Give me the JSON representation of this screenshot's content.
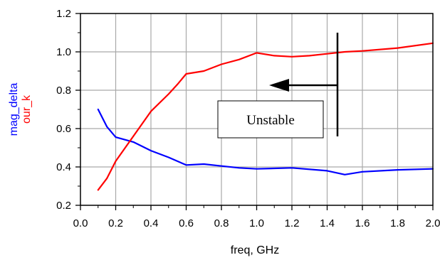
{
  "chart_data": {
    "type": "line",
    "xlabel": "freq, GHz",
    "ylabel_series": [
      "mag_delta",
      "our_k"
    ],
    "xlim": [
      0.0,
      2.0
    ],
    "ylim": [
      0.2,
      1.2
    ],
    "x_ticks": [
      "0.0",
      "0.2",
      "0.4",
      "0.6",
      "0.8",
      "1.0",
      "1.2",
      "1.4",
      "1.6",
      "1.8",
      "2.0"
    ],
    "y_ticks": [
      "0.2",
      "0.4",
      "0.6",
      "0.8",
      "1.0",
      "1.2"
    ],
    "grid": true,
    "series": [
      {
        "name": "mag_delta",
        "color": "#0000ff",
        "x": [
          0.1,
          0.15,
          0.2,
          0.3,
          0.4,
          0.5,
          0.6,
          0.7,
          0.8,
          0.9,
          1.0,
          1.2,
          1.4,
          1.5,
          1.6,
          1.8,
          2.0
        ],
        "y": [
          0.7,
          0.61,
          0.555,
          0.53,
          0.485,
          0.45,
          0.41,
          0.415,
          0.405,
          0.395,
          0.39,
          0.395,
          0.38,
          0.36,
          0.375,
          0.385,
          0.39
        ]
      },
      {
        "name": "our_k",
        "color": "#ff0000",
        "x": [
          0.1,
          0.15,
          0.2,
          0.3,
          0.4,
          0.5,
          0.55,
          0.6,
          0.7,
          0.8,
          0.9,
          1.0,
          1.1,
          1.2,
          1.3,
          1.4,
          1.5,
          1.6,
          1.8,
          2.0
        ],
        "y": [
          0.28,
          0.34,
          0.43,
          0.56,
          0.69,
          0.78,
          0.83,
          0.885,
          0.9,
          0.935,
          0.96,
          0.995,
          0.98,
          0.975,
          0.98,
          0.99,
          1.0,
          1.005,
          1.02,
          1.045
        ]
      }
    ],
    "annotation": {
      "text": "Unstable",
      "arrow_color": "#000000"
    }
  }
}
